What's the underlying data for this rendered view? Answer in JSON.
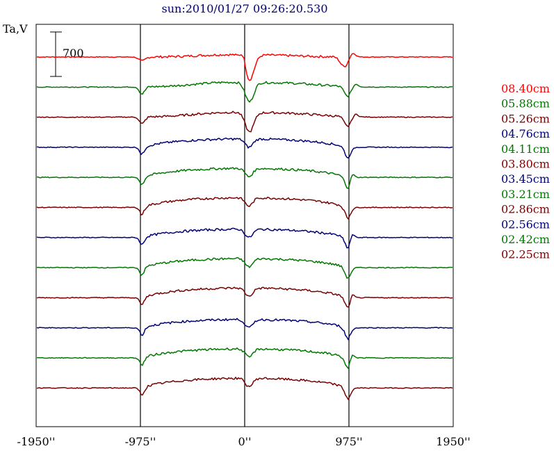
{
  "chart_data": {
    "type": "line",
    "title": "sun:2010/01/27 09:26:20.530",
    "ylabel": "Ta,V",
    "xlabel": "",
    "x_ticks": [
      "-1950''",
      "-975''",
      "0''",
      "975''",
      "1950''"
    ],
    "xlim": [
      -1950,
      1950
    ],
    "vlines": [
      -975,
      0,
      975
    ],
    "scale_bar": {
      "label": "700",
      "value": 700
    },
    "grid": false,
    "legend_position": "right",
    "series": [
      {
        "name": "08.40cm",
        "color": "#ff0000",
        "shape": "surge"
      },
      {
        "name": "05.88cm",
        "color": "#007700",
        "shape": "dipflat"
      },
      {
        "name": "05.26cm",
        "color": "#770000",
        "shape": "dipflat"
      },
      {
        "name": "04.76cm",
        "color": "#000077",
        "shape": "dome"
      },
      {
        "name": "04.11cm",
        "color": "#007700",
        "shape": "dome"
      },
      {
        "name": "03.80cm",
        "color": "#770000",
        "shape": "dome"
      },
      {
        "name": "03.45cm",
        "color": "#000077",
        "shape": "dome"
      },
      {
        "name": "03.21cm",
        "color": "#007700",
        "shape": "dome"
      },
      {
        "name": "02.86cm",
        "color": "#770000",
        "shape": "dome"
      },
      {
        "name": "02.56cm",
        "color": "#000077",
        "shape": "dome"
      },
      {
        "name": "02.42cm",
        "color": "#007700",
        "shape": "dome"
      },
      {
        "name": "02.25cm",
        "color": "#770000",
        "shape": "dome"
      }
    ]
  }
}
